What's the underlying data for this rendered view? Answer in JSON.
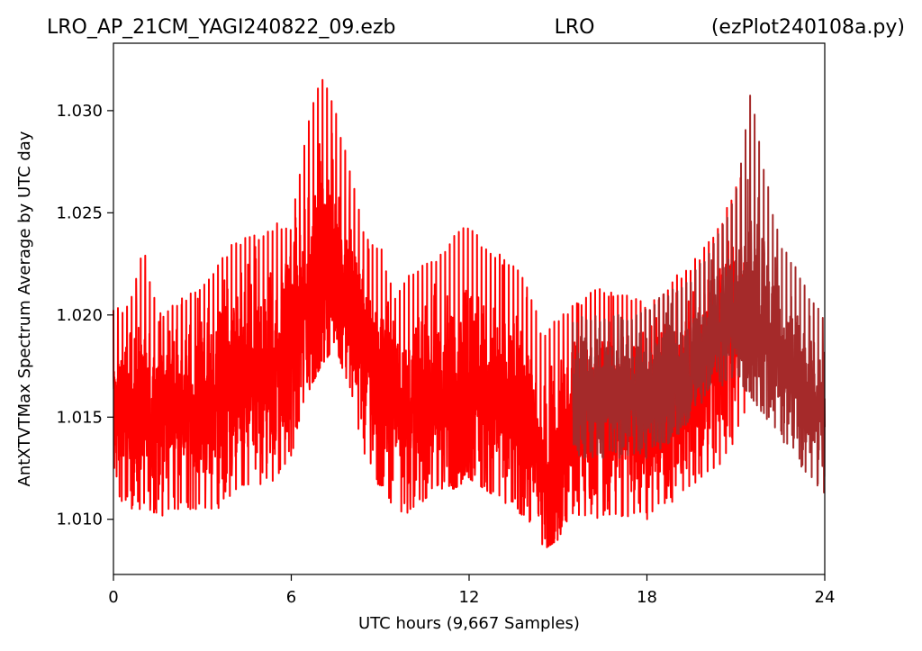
{
  "header": {
    "filename": "LRO_AP_21CM_YAGI240822_09.ezb",
    "site": "LRO",
    "program": "(ezPlot240108a.py)"
  },
  "chart_data": {
    "type": "line",
    "xlabel": "UTC hours  (9,667 Samples)",
    "ylabel": "AntXTVTMax Spectrum Average by UTC day",
    "xlim": [
      0,
      24
    ],
    "ylim": [
      1.0073,
      1.0333
    ],
    "xticks": [
      0,
      6,
      12,
      18,
      24
    ],
    "xtick_labels": [
      "0",
      "6",
      "12",
      "18",
      "24"
    ],
    "yticks": [
      1.01,
      1.015,
      1.02,
      1.025,
      1.03
    ],
    "ytick_labels": [
      "1.010",
      "1.015",
      "1.020",
      "1.025",
      "1.030"
    ],
    "grid": false,
    "sample_count": 9667,
    "series": [
      {
        "color": "#ff0000",
        "hours": [
          0,
          0.5,
          1,
          1.5,
          2,
          2.5,
          3,
          3.5,
          4,
          4.5,
          5,
          5.5,
          6,
          6.5,
          7,
          7.5,
          8,
          8.5,
          9,
          9.5,
          10,
          10.5,
          11,
          11.5,
          12,
          12.5,
          13,
          13.5,
          14,
          14.5,
          15,
          15.5,
          16,
          16.5,
          17,
          17.5,
          18,
          18.5,
          19,
          19.5,
          20,
          20.5,
          21,
          21.3
        ],
        "center": [
          1.015,
          1.015,
          1.015,
          1.015,
          1.0155,
          1.0152,
          1.0155,
          1.0158,
          1.0162,
          1.0165,
          1.017,
          1.0175,
          1.0185,
          1.0205,
          1.0215,
          1.0225,
          1.0205,
          1.018,
          1.0165,
          1.016,
          1.015,
          1.0155,
          1.016,
          1.016,
          1.0165,
          1.016,
          1.0155,
          1.015,
          1.0145,
          1.012,
          1.013,
          1.0145,
          1.015,
          1.0155,
          1.015,
          1.015,
          1.015,
          1.015,
          1.0155,
          1.0165,
          1.0175,
          1.0185,
          1.0195,
          1.02
        ],
        "upper": [
          1.0205,
          1.0205,
          1.0235,
          1.02,
          1.0205,
          1.021,
          1.0215,
          1.0225,
          1.0235,
          1.024,
          1.024,
          1.0245,
          1.0245,
          1.029,
          1.032,
          1.03,
          1.027,
          1.024,
          1.0235,
          1.021,
          1.022,
          1.0225,
          1.023,
          1.024,
          1.0245,
          1.0235,
          1.023,
          1.0225,
          1.0215,
          1.019,
          1.02,
          1.0205,
          1.021,
          1.0215,
          1.021,
          1.021,
          1.0205,
          1.021,
          1.022,
          1.0225,
          1.0235,
          1.0245,
          1.0265,
          1.027
        ],
        "lower": [
          1.011,
          1.0105,
          1.0105,
          1.01,
          1.0105,
          1.0105,
          1.0105,
          1.0105,
          1.011,
          1.0115,
          1.0115,
          1.012,
          1.013,
          1.016,
          1.0175,
          1.0185,
          1.016,
          1.013,
          1.0115,
          1.0105,
          1.01,
          1.011,
          1.0115,
          1.0115,
          1.012,
          1.0115,
          1.011,
          1.0105,
          1.01,
          1.0085,
          1.009,
          1.01,
          1.01,
          1.01,
          1.01,
          1.01,
          1.01,
          1.0105,
          1.011,
          1.0115,
          1.012,
          1.0125,
          1.014,
          1.015
        ]
      },
      {
        "color": "#a52a2a",
        "hours": [
          15.5,
          16,
          16.5,
          17,
          17.5,
          18,
          18.5,
          19,
          19.5,
          20,
          20.5,
          21,
          21.5,
          22,
          22.5,
          23,
          23.5,
          24
        ],
        "center": [
          1.016,
          1.016,
          1.016,
          1.016,
          1.016,
          1.016,
          1.0165,
          1.017,
          1.0175,
          1.0185,
          1.0195,
          1.02,
          1.02,
          1.0195,
          1.018,
          1.017,
          1.016,
          1.015
        ],
        "upper": [
          1.02,
          1.02,
          1.02,
          1.02,
          1.02,
          1.0205,
          1.021,
          1.0215,
          1.022,
          1.023,
          1.0245,
          1.026,
          1.031,
          1.027,
          1.0235,
          1.0225,
          1.021,
          1.02
        ],
        "lower": [
          1.013,
          1.013,
          1.013,
          1.013,
          1.013,
          1.013,
          1.0135,
          1.014,
          1.015,
          1.016,
          1.0165,
          1.017,
          1.016,
          1.015,
          1.014,
          1.013,
          1.012,
          1.011
        ]
      }
    ]
  }
}
